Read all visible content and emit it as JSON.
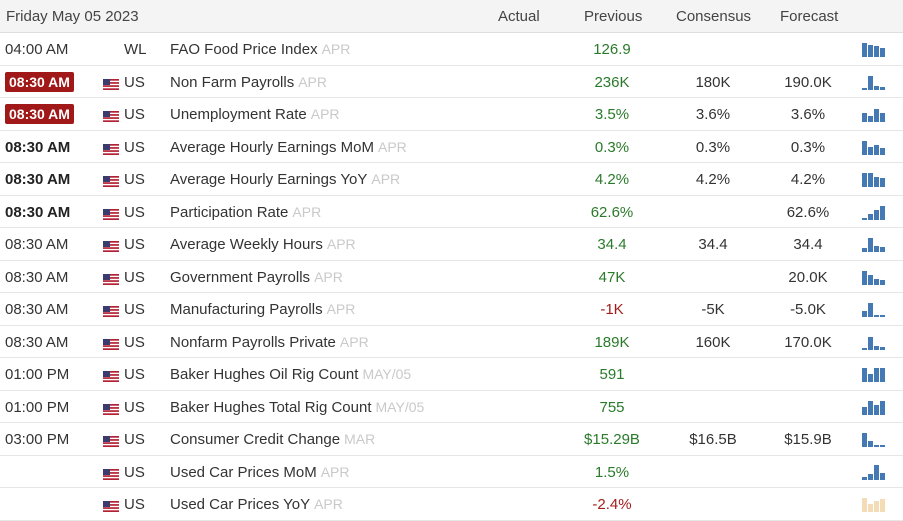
{
  "header": {
    "date": "Friday May 05 2023",
    "actual": "Actual",
    "previous": "Previous",
    "consensus": "Consensus",
    "forecast": "Forecast"
  },
  "colors": {
    "positive": "#2a7a2a",
    "negative": "#a31d1d",
    "highlight": "#a01818",
    "bar": "#4479b3",
    "bar_faded": "#f4dcb6"
  },
  "rows": [
    {
      "time": "04:00 AM",
      "style": "normal",
      "flag": false,
      "country": "WL",
      "event": "FAO Food Price Index",
      "period": "APR",
      "actual": "",
      "previous": "126.9",
      "previous_sign": "pos",
      "consensus": "",
      "forecast": "",
      "bars": [
        0.85,
        0.75,
        0.7,
        0.55
      ],
      "faded": false
    },
    {
      "time": "08:30 AM",
      "style": "highlight",
      "flag": true,
      "country": "US",
      "event": "Non Farm Payrolls",
      "period": "APR",
      "actual": "",
      "previous": "236K",
      "previous_sign": "pos",
      "consensus": "180K",
      "forecast": "190.0K",
      "bars": [
        0.15,
        0.9,
        0.25,
        0.2
      ],
      "faded": false
    },
    {
      "time": "08:30 AM",
      "style": "highlight",
      "flag": true,
      "country": "US",
      "event": "Unemployment Rate",
      "period": "APR",
      "actual": "",
      "previous": "3.5%",
      "previous_sign": "pos",
      "consensus": "3.6%",
      "forecast": "3.6%",
      "bars": [
        0.55,
        0.4,
        0.8,
        0.55
      ],
      "faded": false
    },
    {
      "time": "08:30 AM",
      "style": "bold",
      "flag": true,
      "country": "US",
      "event": "Average Hourly Earnings MoM",
      "period": "APR",
      "actual": "",
      "previous": "0.3%",
      "previous_sign": "pos",
      "consensus": "0.3%",
      "forecast": "0.3%",
      "bars": [
        0.85,
        0.5,
        0.6,
        0.45
      ],
      "faded": false
    },
    {
      "time": "08:30 AM",
      "style": "bold",
      "flag": true,
      "country": "US",
      "event": "Average Hourly Earnings YoY",
      "period": "APR",
      "actual": "",
      "previous": "4.2%",
      "previous_sign": "pos",
      "consensus": "4.2%",
      "forecast": "4.2%",
      "bars": [
        0.9,
        0.85,
        0.6,
        0.55
      ],
      "faded": false
    },
    {
      "time": "08:30 AM",
      "style": "bold",
      "flag": true,
      "country": "US",
      "event": "Participation Rate",
      "period": "APR",
      "actual": "",
      "previous": "62.6%",
      "previous_sign": "pos",
      "consensus": "",
      "forecast": "62.6%",
      "bars": [
        0.1,
        0.35,
        0.6,
        0.85
      ],
      "faded": false
    },
    {
      "time": "08:30 AM",
      "style": "normal",
      "flag": true,
      "country": "US",
      "event": "Average Weekly Hours",
      "period": "APR",
      "actual": "",
      "previous": "34.4",
      "previous_sign": "pos",
      "consensus": "34.4",
      "forecast": "34.4",
      "bars": [
        0.25,
        0.85,
        0.35,
        0.3
      ],
      "faded": false
    },
    {
      "time": "08:30 AM",
      "style": "normal",
      "flag": true,
      "country": "US",
      "event": "Government Payrolls",
      "period": "APR",
      "actual": "",
      "previous": "47K",
      "previous_sign": "pos",
      "consensus": "",
      "forecast": "20.0K",
      "bars": [
        0.9,
        0.6,
        0.35,
        0.3
      ],
      "faded": false
    },
    {
      "time": "08:30 AM",
      "style": "normal",
      "flag": true,
      "country": "US",
      "event": "Manufacturing Payrolls",
      "period": "APR",
      "actual": "",
      "previous": "-1K",
      "previous_sign": "neg",
      "consensus": "-5K",
      "forecast": "-5.0K",
      "bars": [
        0.35,
        0.9,
        0.05,
        0.05
      ],
      "faded": false
    },
    {
      "time": "08:30 AM",
      "style": "normal",
      "flag": true,
      "country": "US",
      "event": "Nonfarm Payrolls Private",
      "period": "APR",
      "actual": "",
      "previous": "189K",
      "previous_sign": "pos",
      "consensus": "160K",
      "forecast": "170.0K",
      "bars": [
        0.1,
        0.8,
        0.25,
        0.2
      ],
      "faded": false
    },
    {
      "time": "01:00 PM",
      "style": "normal",
      "flag": true,
      "country": "US",
      "event": "Baker Hughes Oil Rig Count",
      "period": "MAY/05",
      "actual": "",
      "previous": "591",
      "previous_sign": "pos",
      "consensus": "",
      "forecast": "",
      "bars": [
        0.85,
        0.5,
        0.9,
        0.9
      ],
      "faded": false
    },
    {
      "time": "01:00 PM",
      "style": "normal",
      "flag": true,
      "country": "US",
      "event": "Baker Hughes Total Rig Count",
      "period": "MAY/05",
      "actual": "",
      "previous": "755",
      "previous_sign": "pos",
      "consensus": "",
      "forecast": "",
      "bars": [
        0.5,
        0.85,
        0.6,
        0.9
      ],
      "faded": false
    },
    {
      "time": "03:00 PM",
      "style": "normal",
      "flag": true,
      "country": "US",
      "event": "Consumer Credit Change",
      "period": "MAR",
      "actual": "",
      "previous": "$15.29B",
      "previous_sign": "pos",
      "consensus": "$16.5B",
      "forecast": "$15.9B",
      "bars": [
        0.9,
        0.4,
        0.15,
        0.15
      ],
      "faded": false
    },
    {
      "time": "",
      "style": "normal",
      "flag": true,
      "country": "US",
      "event": "Used Car Prices MoM",
      "period": "APR",
      "actual": "",
      "previous": "1.5%",
      "previous_sign": "pos",
      "consensus": "",
      "forecast": "",
      "bars": [
        0.2,
        0.4,
        0.95,
        0.45
      ],
      "faded": false
    },
    {
      "time": "",
      "style": "normal",
      "flag": true,
      "country": "US",
      "event": "Used Car Prices YoY",
      "period": "APR",
      "actual": "",
      "previous": "-2.4%",
      "previous_sign": "neg",
      "consensus": "",
      "forecast": "",
      "bars": [
        0.9,
        0.5,
        0.7,
        0.8
      ],
      "faded": true
    }
  ]
}
